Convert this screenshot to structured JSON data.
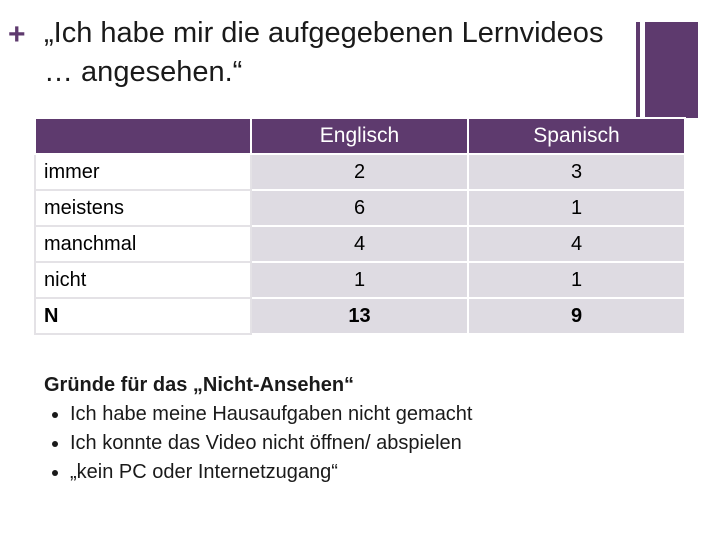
{
  "header": {
    "title": "„Ich habe mir die aufgegebenen Lernvideos … angesehen.“"
  },
  "table": {
    "columns": [
      "Englisch",
      "Spanisch"
    ],
    "rows": [
      {
        "label": "immer",
        "values": [
          2,
          3
        ]
      },
      {
        "label": "meistens",
        "values": [
          6,
          1
        ]
      },
      {
        "label": "manchmal",
        "values": [
          4,
          4
        ]
      },
      {
        "label": "nicht",
        "values": [
          1,
          1
        ]
      },
      {
        "label": "N",
        "values": [
          13,
          9
        ]
      }
    ]
  },
  "reasons": {
    "title": "Gründe für das „Nicht-Ansehen“",
    "items": [
      "Ich habe meine Hausaufgaben nicht gemacht",
      "Ich konnte das Video nicht öffnen/ abspielen",
      "„kein PC oder Internetzugang“"
    ]
  }
}
